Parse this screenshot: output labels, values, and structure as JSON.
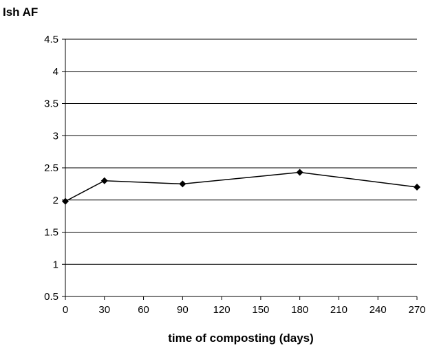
{
  "chart_data": {
    "type": "line",
    "title": "",
    "xlabel": "time of composting (days)",
    "ylabel": "Ish AF",
    "x_ticks": [
      "0",
      "30",
      "60",
      "90",
      "120",
      "150",
      "180",
      "210",
      "240",
      "270"
    ],
    "y_ticks": [
      "0.5",
      "1",
      "1.5",
      "2",
      "2.5",
      "3",
      "3.5",
      "4",
      "4.5"
    ],
    "ylim": [
      0.5,
      4.5
    ],
    "grid": "horizontal",
    "legend": "none",
    "series": [
      {
        "x": [
          0,
          30,
          90,
          180,
          270
        ],
        "values": [
          1.98,
          2.3,
          2.25,
          2.43,
          2.2
        ],
        "marker": "diamond",
        "color": "#000000"
      }
    ]
  }
}
